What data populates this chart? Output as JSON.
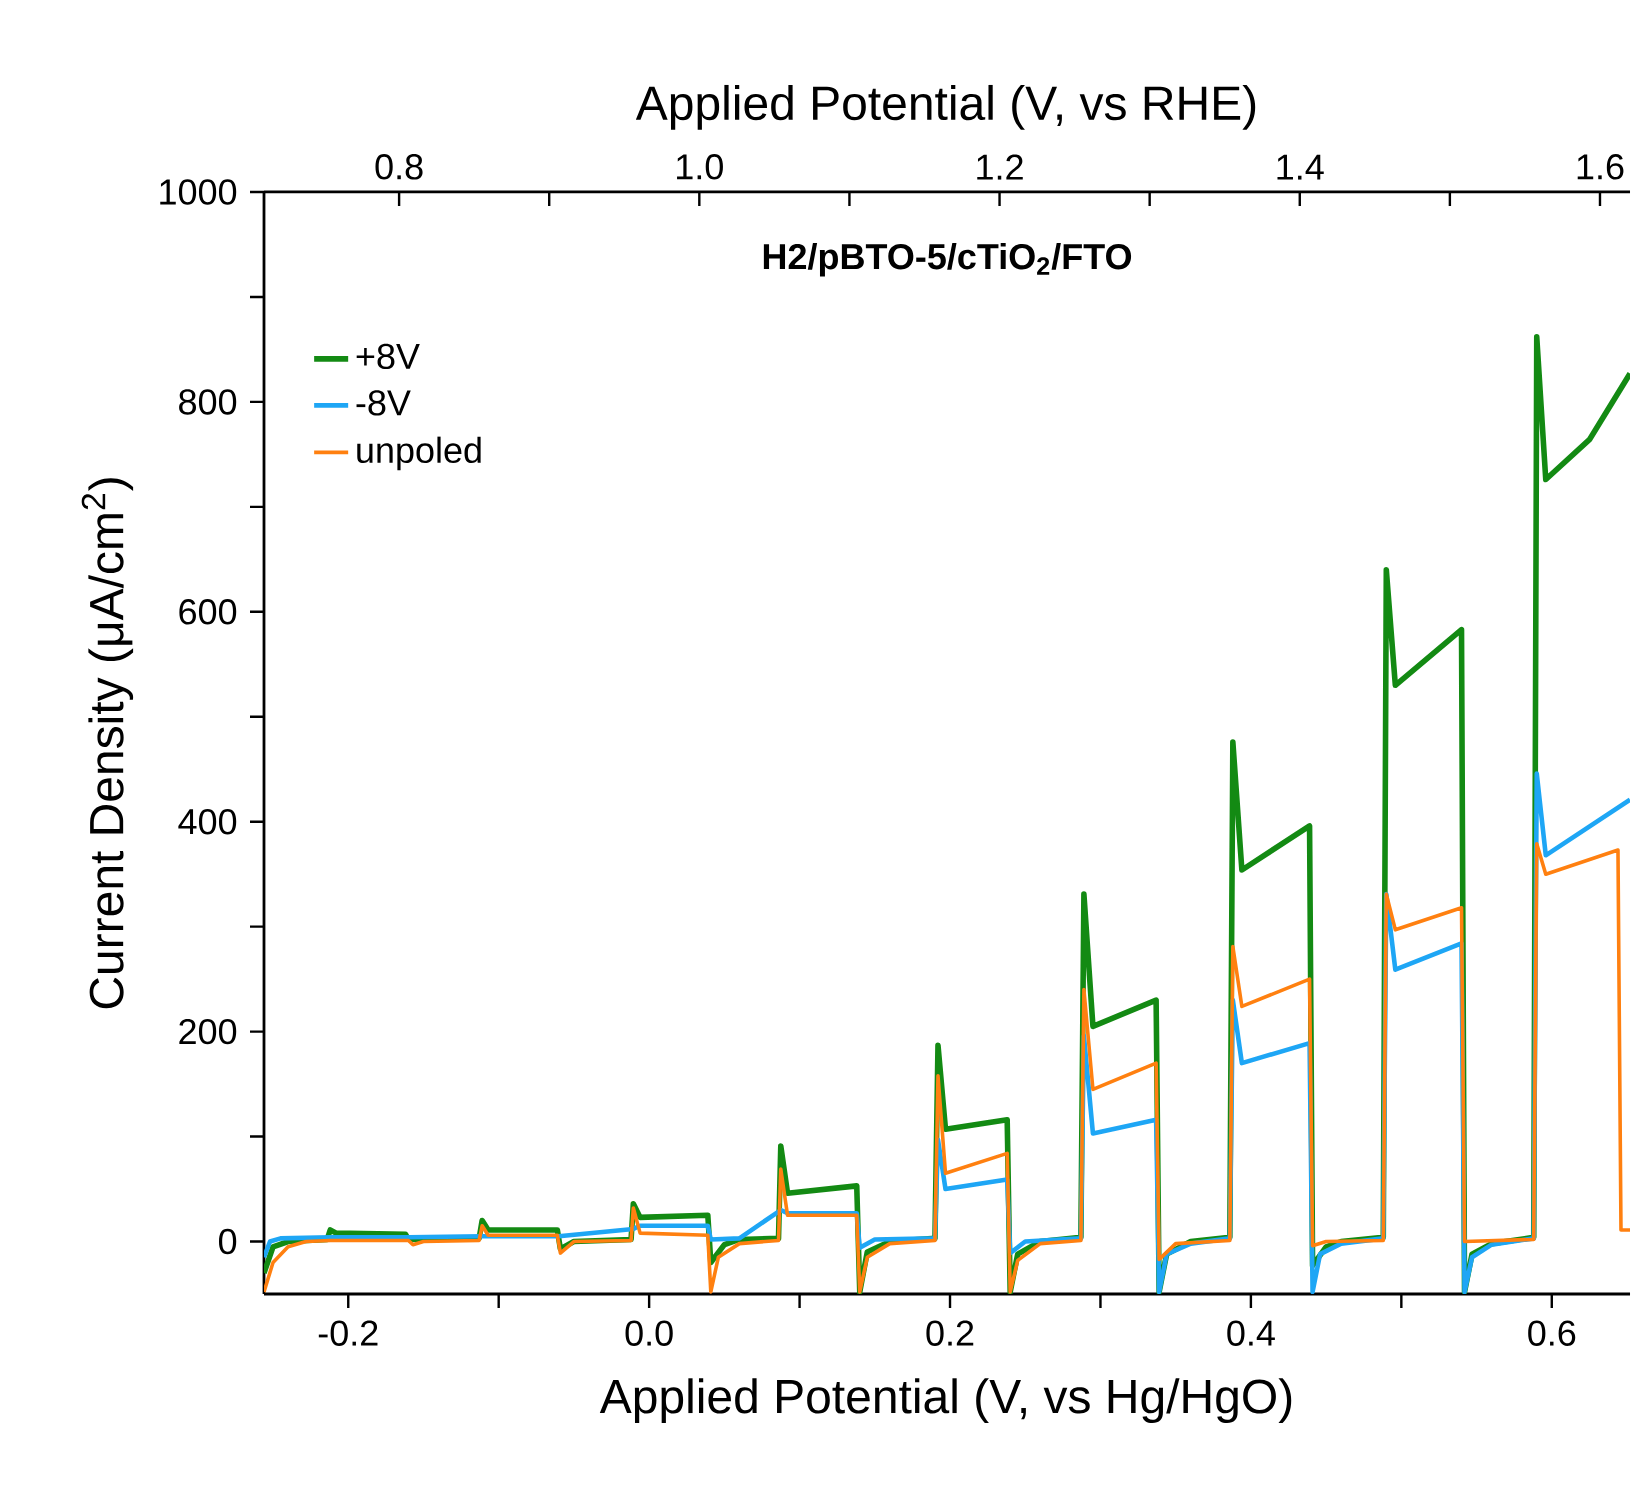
{
  "chart_data": {
    "type": "line",
    "xlabel": "Applied Potential (V, vs Hg/HgO)",
    "x2label": "Applied Potential (V, vs RHE)",
    "ylabel": "Current Density (μA/cm$^{2}$)",
    "annotations": [
      "**H2/pBTO-5/cTiO$_{2}$/FTO**"
    ],
    "xlim": [
      -0.256,
      0.652
    ],
    "xticks": [
      -0.2,
      {
        "value": -0.1,
        "label": null
      },
      {
        "value": 0,
        "label": "0.0"
      },
      {
        "value": 0.1,
        "label": null
      },
      0.2,
      {
        "value": 0.3,
        "label": null
      },
      0.4,
      {
        "value": 0.5,
        "label": null
      },
      0.6
    ],
    "x2lim": [
      0.71,
      1.62
    ],
    "x2ticks": [
      0.8,
      {
        "value": 0.9,
        "label": null
      },
      {
        "value": 1.0,
        "label": "1.0"
      },
      {
        "value": 1.1,
        "label": null
      },
      1.2,
      {
        "value": 1.3,
        "label": null
      },
      1.4,
      {
        "value": 1.5,
        "label": null
      },
      1.6
    ],
    "ylim": [
      -50,
      1000
    ],
    "yticks": [
      0,
      {
        "value": 100,
        "label": null
      },
      200,
      {
        "value": 300,
        "label": null
      },
      400,
      {
        "value": 500,
        "label": null
      },
      600,
      {
        "value": 700,
        "label": null
      },
      800,
      {
        "value": 900,
        "label": null
      },
      1000
    ],
    "legend": "top left",
    "series": [
      {
        "name": "+8V",
        "color": "#138a13",
        "x": [
          -0.256,
          -0.25,
          -0.24,
          -0.214,
          -0.212,
          -0.208,
          -0.162,
          -0.16,
          -0.113,
          -0.111,
          -0.107,
          -0.061,
          -0.059,
          -0.05,
          -0.012,
          -0.0105,
          -0.006,
          0.039,
          0.041,
          0.05,
          0.06,
          0.086,
          0.0875,
          0.092,
          0.138,
          0.14,
          0.145,
          0.16,
          0.19,
          0.192,
          0.197,
          0.238,
          0.24,
          0.245,
          0.26,
          0.287,
          0.289,
          0.295,
          0.337,
          0.339,
          0.344,
          0.36,
          0.386,
          0.388,
          0.394,
          0.439,
          0.441,
          0.45,
          0.46,
          0.488,
          0.49,
          0.496,
          0.54,
          0.542,
          0.547,
          0.56,
          0.588,
          0.59,
          0.596,
          0.625,
          0.652
        ],
        "values": [
          -30,
          -5,
          0,
          2,
          11,
          8,
          7,
          2,
          3,
          20,
          11,
          11,
          -7,
          0,
          2,
          36,
          23,
          25,
          -20,
          -3,
          2,
          3,
          91,
          46,
          53,
          -48,
          -10,
          0,
          3,
          187,
          107,
          116,
          -48,
          -12,
          0,
          4,
          331,
          205,
          230,
          -48,
          -12,
          0,
          4,
          476,
          354,
          396,
          -23,
          -5,
          0,
          4,
          640,
          530,
          583,
          -48,
          -12,
          -2,
          4,
          862,
          726,
          764,
          827
        ]
      },
      {
        "name": "-8V",
        "color": "#1ea6f5",
        "x": [
          -0.256,
          -0.252,
          -0.245,
          -0.212,
          -0.16,
          -0.111,
          -0.06,
          -0.0105,
          -0.006,
          0.039,
          0.041,
          0.06,
          0.0875,
          0.092,
          0.138,
          0.14,
          0.15,
          0.19,
          0.192,
          0.197,
          0.238,
          0.24,
          0.25,
          0.287,
          0.289,
          0.295,
          0.337,
          0.339,
          0.344,
          0.36,
          0.386,
          0.388,
          0.394,
          0.439,
          0.441,
          0.446,
          0.46,
          0.488,
          0.49,
          0.496,
          0.54,
          0.542,
          0.547,
          0.56,
          0.588,
          0.59,
          0.596,
          0.652
        ],
        "values": [
          -15,
          0,
          3,
          4,
          4,
          5,
          5,
          12,
          15,
          15,
          2,
          3,
          30,
          27,
          27,
          -6,
          2,
          3,
          97,
          50,
          59,
          -11,
          0,
          3,
          196,
          103,
          116,
          -48,
          -12,
          -2,
          3,
          230,
          170,
          189,
          -48,
          -12,
          -2,
          3,
          331,
          259,
          284,
          -48,
          -15,
          -3,
          3,
          446,
          368,
          421
        ]
      },
      {
        "name": "unpoled",
        "color": "#ff8010",
        "x": [
          -0.256,
          -0.25,
          -0.24,
          -0.228,
          -0.212,
          -0.16,
          -0.157,
          -0.15,
          -0.113,
          -0.111,
          -0.107,
          -0.061,
          -0.059,
          -0.05,
          -0.012,
          -0.0105,
          -0.006,
          0.039,
          0.041,
          0.046,
          0.06,
          0.086,
          0.0875,
          0.092,
          0.138,
          0.14,
          0.145,
          0.16,
          0.19,
          0.192,
          0.197,
          0.238,
          0.24,
          0.245,
          0.26,
          0.287,
          0.289,
          0.295,
          0.337,
          0.339,
          0.35,
          0.386,
          0.388,
          0.394,
          0.439,
          0.441,
          0.45,
          0.488,
          0.49,
          0.496,
          0.54,
          0.542,
          0.588,
          0.59,
          0.596,
          0.644,
          0.646,
          0.652
        ],
        "values": [
          -48,
          -20,
          -5,
          0,
          1,
          1,
          -3,
          0,
          1,
          15,
          6,
          6,
          -11,
          0,
          1,
          32,
          8,
          6,
          -48,
          -15,
          -2,
          1,
          69,
          25,
          25,
          -48,
          -15,
          -2,
          1,
          158,
          65,
          84,
          -48,
          -18,
          -2,
          1,
          240,
          145,
          170,
          -17,
          -2,
          1,
          281,
          224,
          250,
          -4,
          0,
          1,
          331,
          297,
          318,
          0,
          2,
          379,
          350,
          373,
          11,
          11
        ]
      }
    ]
  }
}
